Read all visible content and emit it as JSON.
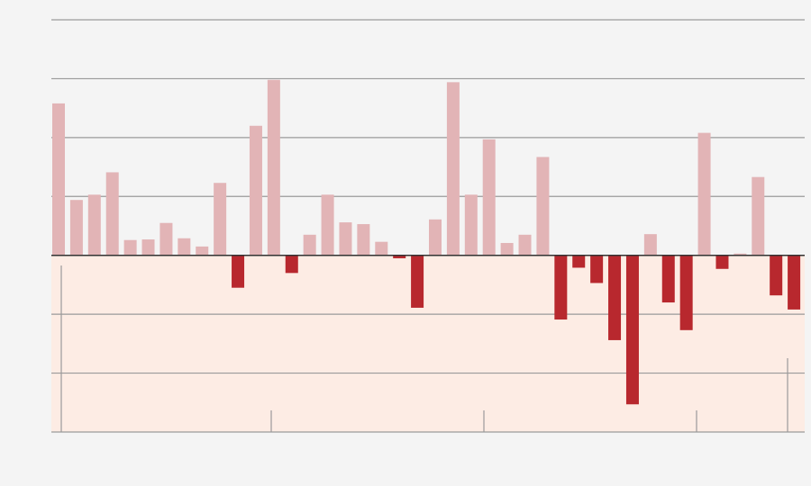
{
  "chart_data": {
    "type": "bar",
    "title": "",
    "xlabel": "",
    "ylabel": "",
    "ylim": [
      -3,
      4
    ],
    "grid": true,
    "legend": "none",
    "x_tick_count": 5,
    "colors": {
      "background": "#f4f4f4",
      "negative_zone": "#fdece4",
      "positive": "#e2b4b6",
      "negative": "#b8282e",
      "grid": "#9a9a9a",
      "zero_line": "#333333"
    },
    "values": [
      2.58,
      0.94,
      1.03,
      1.41,
      0.26,
      0.27,
      0.55,
      0.29,
      0.15,
      1.23,
      -0.55,
      2.2,
      2.98,
      -0.3,
      0.35,
      1.03,
      0.56,
      0.53,
      0.23,
      -0.05,
      -0.89,
      0.61,
      2.94,
      1.03,
      1.97,
      0.21,
      0.35,
      1.67,
      -1.09,
      -0.21,
      -0.47,
      -1.44,
      -2.53,
      0.36,
      -0.8,
      -1.27,
      2.08,
      -0.23,
      0.03,
      1.33,
      -0.68,
      -0.92
    ]
  }
}
